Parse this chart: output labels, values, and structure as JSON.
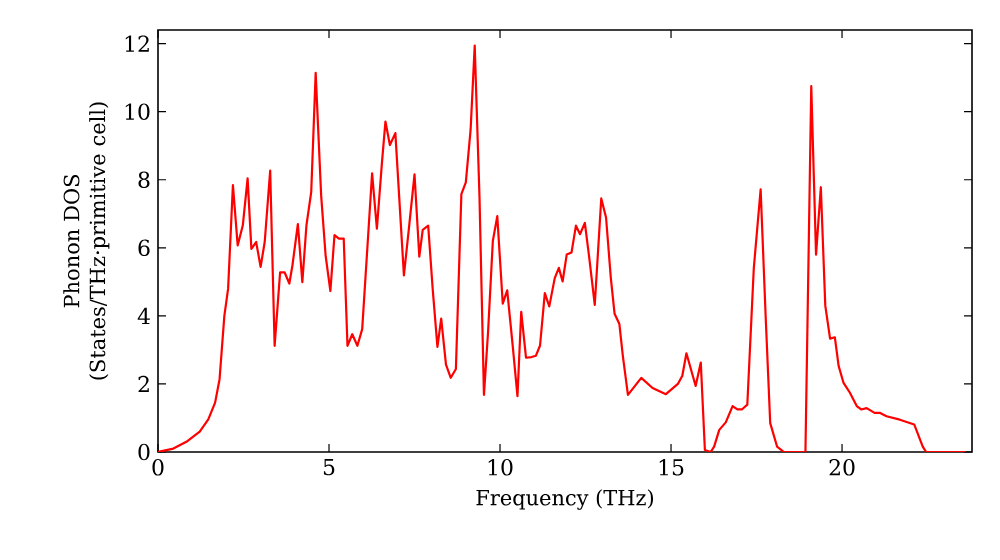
{
  "chart_data": {
    "type": "line",
    "xlabel": "Frequency (THz)",
    "ylabel": "Phonon DOS (States/THz·primitive cell)",
    "xlim": [
      0,
      23.8
    ],
    "ylim": [
      0,
      12.4
    ],
    "xticks": [
      0,
      5,
      10,
      15,
      20
    ],
    "yticks": [
      0,
      2,
      4,
      6,
      8,
      10,
      12
    ],
    "grid": false,
    "marker": "none",
    "line_style": "solid",
    "series": [
      {
        "color": "#ff0000",
        "x": [
          0,
          0.45,
          0.83,
          1.22,
          1.47,
          1.67,
          1.8,
          1.94,
          2.05,
          2.19,
          2.33,
          2.48,
          2.62,
          2.73,
          2.87,
          3.0,
          3.12,
          3.28,
          3.41,
          3.57,
          3.7,
          3.84,
          3.93,
          4.09,
          4.22,
          4.34,
          4.48,
          4.61,
          4.77,
          4.9,
          5.04,
          5.16,
          5.29,
          5.43,
          5.54,
          5.68,
          5.83,
          5.97,
          6.26,
          6.4,
          6.55,
          6.65,
          6.78,
          6.94,
          7.19,
          7.35,
          7.5,
          7.64,
          7.74,
          7.9,
          8.03,
          8.17,
          8.28,
          8.42,
          8.56,
          8.71,
          8.87,
          9.0,
          9.14,
          9.26,
          9.4,
          9.53,
          9.65,
          9.79,
          9.92,
          10.08,
          10.21,
          10.37,
          10.51,
          10.62,
          10.76,
          10.92,
          11.05,
          11.17,
          11.31,
          11.44,
          11.6,
          11.72,
          11.83,
          11.95,
          12.09,
          12.22,
          12.34,
          12.48,
          12.61,
          12.77,
          12.96,
          13.1,
          13.24,
          13.35,
          13.49,
          13.59,
          13.74,
          14.13,
          14.46,
          14.85,
          15.2,
          15.33,
          15.45,
          15.72,
          15.87,
          15.99,
          16.16,
          16.26,
          16.41,
          16.6,
          16.8,
          16.94,
          17.07,
          17.23,
          17.42,
          17.62,
          17.77,
          17.9,
          18.1,
          18.3,
          18.93,
          19.1,
          19.24,
          19.38,
          19.51,
          19.65,
          19.79,
          19.9,
          20.04,
          20.23,
          20.43,
          20.56,
          20.72,
          20.95,
          21.1,
          21.3,
          21.69,
          22.11,
          22.36,
          22.46,
          23.62
        ],
        "values": [
          0,
          0.1,
          0.3,
          0.6,
          0.96,
          1.45,
          2.14,
          4.0,
          4.8,
          7.84,
          6.07,
          6.66,
          8.04,
          5.97,
          6.17,
          5.44,
          6.17,
          8.27,
          3.12,
          5.28,
          5.28,
          4.95,
          5.48,
          6.7,
          4.99,
          6.66,
          7.64,
          11.14,
          7.54,
          5.78,
          4.73,
          6.37,
          6.27,
          6.27,
          3.12,
          3.46,
          3.12,
          3.61,
          8.19,
          6.56,
          8.53,
          9.71,
          9.02,
          9.37,
          5.19,
          6.7,
          8.16,
          5.74,
          6.53,
          6.65,
          4.81,
          3.09,
          3.92,
          2.57,
          2.18,
          2.44,
          7.58,
          7.92,
          9.47,
          11.94,
          7.49,
          1.68,
          3.52,
          6.2,
          6.93,
          4.36,
          4.75,
          3.13,
          1.64,
          4.12,
          2.77,
          2.79,
          2.83,
          3.13,
          4.67,
          4.28,
          5.11,
          5.41,
          5.01,
          5.8,
          5.86,
          6.65,
          6.4,
          6.73,
          5.7,
          4.32,
          7.45,
          6.89,
          5.11,
          4.06,
          3.76,
          2.83,
          1.68,
          2.18,
          1.88,
          1.7,
          2.0,
          2.24,
          2.9,
          1.94,
          2.63,
          0.06,
          0,
          0.16,
          0.65,
          0.87,
          1.35,
          1.25,
          1.25,
          1.39,
          5.4,
          7.72,
          3.9,
          0.85,
          0.16,
          0,
          0,
          10.75,
          5.8,
          7.78,
          4.3,
          3.33,
          3.37,
          2.53,
          2.04,
          1.74,
          1.35,
          1.25,
          1.29,
          1.15,
          1.15,
          1.05,
          0.95,
          0.81,
          0.16,
          0,
          0
        ]
      }
    ]
  }
}
